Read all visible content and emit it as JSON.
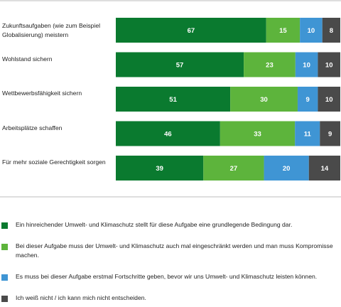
{
  "chart_data": {
    "type": "bar",
    "orientation": "horizontal",
    "stacked": true,
    "categories": [
      "Zukunftsaufgaben (wie zum Beispiel Globalisierung) meistern",
      "Wohlstand sichern",
      "Wettbewerbsfähigkeit sichern",
      "Arbeitsplätze schaffen",
      "Für mehr soziale Gerechtigkeit sorgen"
    ],
    "series": [
      {
        "name": "Ein hinreichender Umwelt- und Klimaschutz stellt für diese Aufgabe eine grundlegende Bedingung dar.",
        "color": "#0a7a2f",
        "values": [
          67,
          57,
          51,
          46,
          39
        ]
      },
      {
        "name": "Bei dieser Aufgabe muss der Umwelt- und Klimaschutz auch mal eingeschränkt werden und man muss Kompromisse machen.",
        "color": "#5db43c",
        "values": [
          15,
          23,
          30,
          33,
          27
        ]
      },
      {
        "name": "Es muss bei dieser Aufgabe erstmal Fortschritte geben, bevor wir uns Umwelt- und Klimaschutz leisten können.",
        "color": "#3f95d4",
        "values": [
          10,
          10,
          9,
          11,
          20
        ]
      },
      {
        "name": "Ich weiß nicht / ich kann mich nicht entscheiden.",
        "color": "#4a4a4a",
        "values": [
          8,
          10,
          10,
          9,
          14
        ]
      }
    ],
    "title": "",
    "xlabel": "",
    "ylabel": "",
    "grid": false,
    "legend_position": "bottom",
    "data_labels": true
  }
}
